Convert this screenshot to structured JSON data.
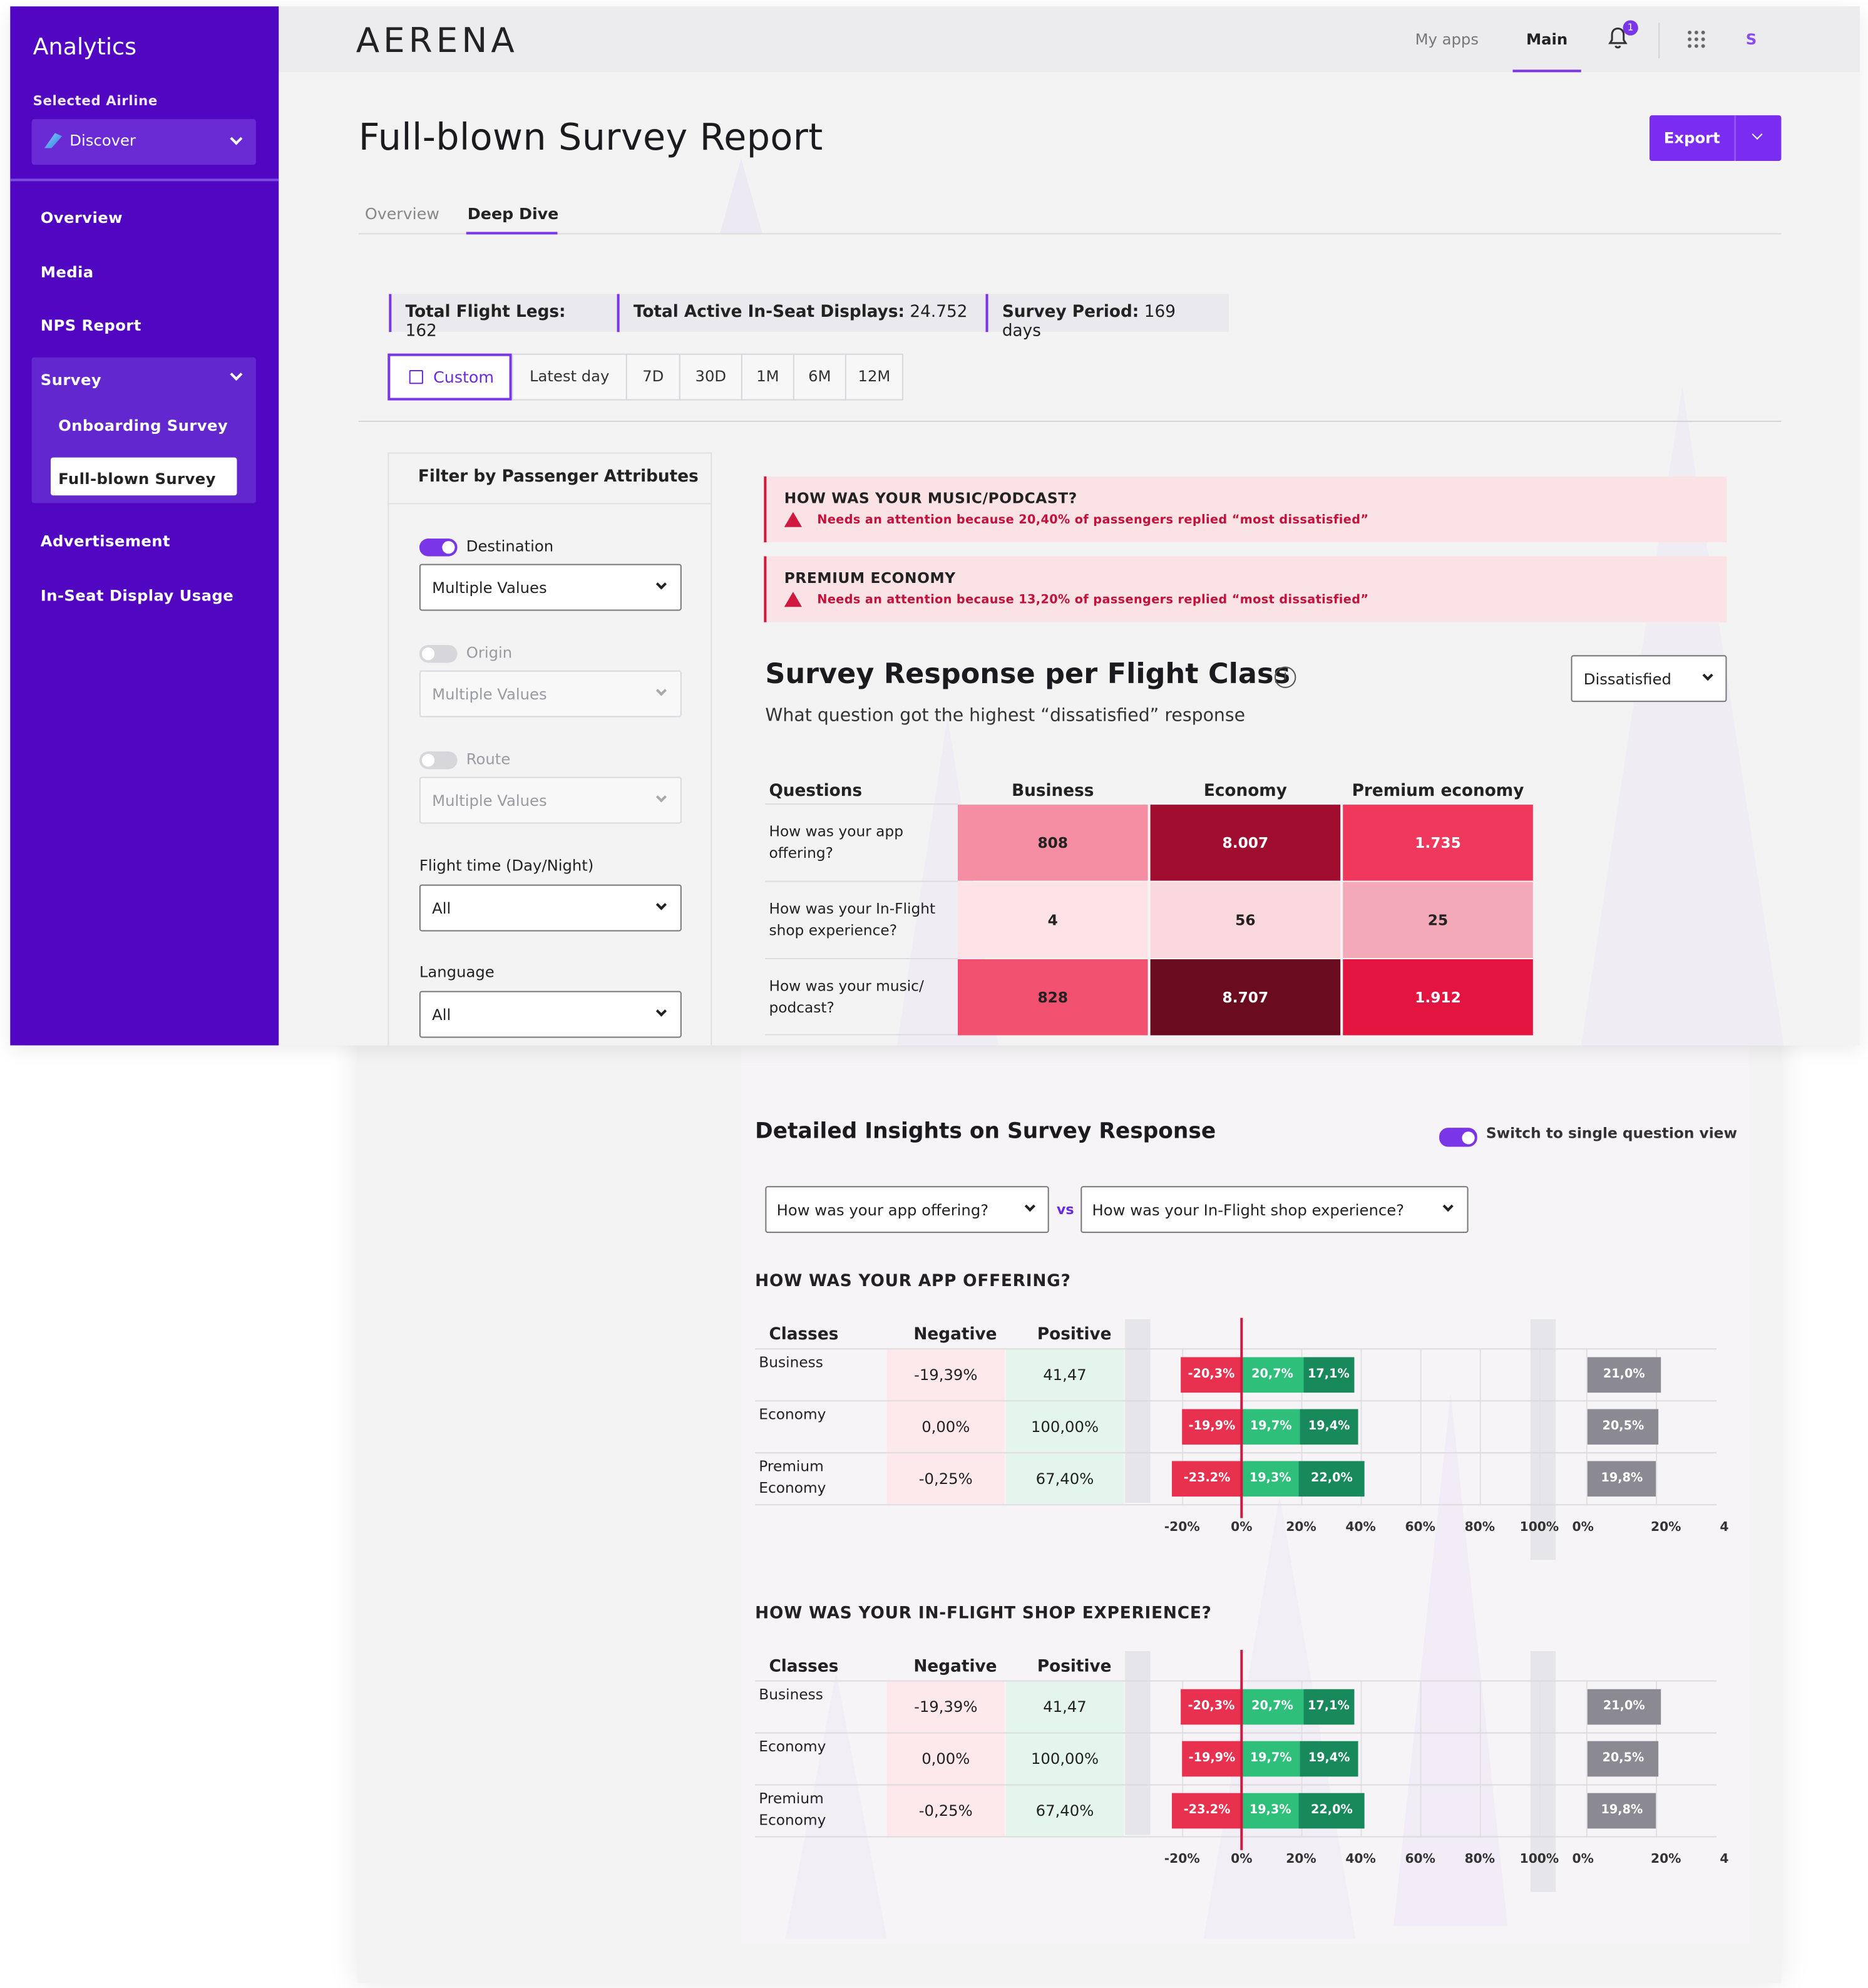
{
  "sidebar": {
    "title": "Analytics",
    "selected_airline_label": "Selected Airline",
    "airline": "Discover",
    "items": [
      "Overview",
      "Media",
      "NPS Report",
      "Survey",
      "Onboarding Survey",
      "Full-blown Survey",
      "Advertisement",
      "In-Seat Display Usage"
    ]
  },
  "topbar": {
    "logo": "AERENA",
    "my_apps": "My apps",
    "main": "Main",
    "notification_count": "1",
    "avatar": "S"
  },
  "header": {
    "title": "Full-blown Survey Report",
    "export": "Export",
    "tabs": [
      "Overview",
      "Deep Dive"
    ],
    "active_tab": "Deep Dive"
  },
  "stats": [
    {
      "label": "Total Flight Legs:",
      "value": "162"
    },
    {
      "label": "Total Active In-Seat Displays:",
      "value": "24.752"
    },
    {
      "label": "Survey Period:",
      "value": "169 days"
    }
  ],
  "date_range": {
    "custom": "Custom",
    "options": [
      "Latest day",
      "7D",
      "30D",
      "1M",
      "6M",
      "12M"
    ]
  },
  "filters": {
    "title": "Filter by Passenger Attributes",
    "destination": {
      "label": "Destination",
      "value": "Multiple Values",
      "enabled": true
    },
    "origin": {
      "label": "Origin",
      "value": "Multiple Values",
      "enabled": false
    },
    "route": {
      "label": "Route",
      "value": "Multiple Values",
      "enabled": false
    },
    "flight_time": {
      "label": "Flight time (Day/Night)",
      "value": "All"
    },
    "language": {
      "label": "Language",
      "value": "All"
    }
  },
  "alerts": [
    {
      "title": "HOW WAS YOUR MUSIC/PODCAST?",
      "message": "Needs an attention because 20,40% of passengers replied “most dissatisfied”"
    },
    {
      "title": "PREMIUM ECONOMY",
      "message": "Needs an attention because 13,20% of passengers replied “most dissatisfied”"
    }
  ],
  "heatmap": {
    "title": "Survey Response per Flight Class",
    "subtitle": "What question got the highest “dissatisfied” response",
    "filter": "Dissatisfied",
    "row_header": "Questions",
    "columns": [
      "Business",
      "Economy",
      "Premium economy"
    ],
    "rows": [
      {
        "question": "How was your app offering?",
        "values": [
          "808",
          "8.007",
          "1.735"
        ]
      },
      {
        "question": "How was your In-Flight shop experience?",
        "values": [
          "4",
          "56",
          "25"
        ]
      },
      {
        "question": "How was your music/ podcast?",
        "values": [
          "828",
          "8.707",
          "1.912"
        ]
      }
    ],
    "colors": [
      [
        "#f58ea3",
        "#a00d2e",
        "#f0375c"
      ],
      [
        "#fde2e7",
        "#fbd7de",
        "#f4a9b8"
      ],
      [
        "#f1506e",
        "#6a0b1f",
        "#e41441"
      ]
    ],
    "text_colors": [
      [
        "#222",
        "#fff",
        "#fff"
      ],
      [
        "#222",
        "#222",
        "#222"
      ],
      [
        "#222",
        "#fff",
        "#fff"
      ]
    ]
  },
  "insights": {
    "title": "Detailed Insights on Survey Response",
    "switch_label": "Switch to single question view",
    "question_a": "How was your app offering?",
    "vs": "vs",
    "question_b": "How was your In-Flight shop experience?",
    "blocks": [
      {
        "heading": "HOW WAS YOUR APP OFFERING?",
        "col_classes": "Classes",
        "col_negative": "Negative",
        "col_positive": "Positive",
        "rows": [
          {
            "class": "Business",
            "negative": "-19,39%",
            "positive": "41,47",
            "bars": {
              "neg": -20.3,
              "neg_label": "-20,3%",
              "mid": 20.7,
              "mid_label": "20,7%",
              "pos": 17.1,
              "pos_label": "17,1%"
            },
            "grey": 21.0,
            "grey_label": "21,0%"
          },
          {
            "class": "Economy",
            "negative": "0,00%",
            "positive": "100,00%",
            "bars": {
              "neg": -19.9,
              "neg_label": "-19,9%",
              "mid": 19.7,
              "mid_label": "19,7%",
              "pos": 19.4,
              "pos_label": "19,4%"
            },
            "grey": 20.5,
            "grey_label": "20,5%"
          },
          {
            "class": "Premium Economy",
            "negative": "-0,25%",
            "positive": "67,40%",
            "bars": {
              "neg": -23.2,
              "neg_label": "-23.2%",
              "mid": 19.3,
              "mid_label": "19,3%",
              "pos": 22.0,
              "pos_label": "22,0%"
            },
            "grey": 19.8,
            "grey_label": "19,8%"
          }
        ]
      },
      {
        "heading": "HOW WAS YOUR IN-FLIGHT SHOP EXPERIENCE?",
        "col_classes": "Classes",
        "col_negative": "Negative",
        "col_positive": "Positive",
        "rows": [
          {
            "class": "Business",
            "negative": "-19,39%",
            "positive": "41,47",
            "bars": {
              "neg": -20.3,
              "neg_label": "-20,3%",
              "mid": 20.7,
              "mid_label": "20,7%",
              "pos": 17.1,
              "pos_label": "17,1%"
            },
            "grey": 21.0,
            "grey_label": "21,0%"
          },
          {
            "class": "Economy",
            "negative": "0,00%",
            "positive": "100,00%",
            "bars": {
              "neg": -19.9,
              "neg_label": "-19,9%",
              "mid": 19.7,
              "mid_label": "19,7%",
              "pos": 19.4,
              "pos_label": "19,4%"
            },
            "grey": 20.5,
            "grey_label": "20,5%"
          },
          {
            "class": "Premium Economy",
            "negative": "-0,25%",
            "positive": "67,40%",
            "bars": {
              "neg": -23.2,
              "neg_label": "-23.2%",
              "mid": 19.3,
              "mid_label": "19,3%",
              "pos": 22.0,
              "pos_label": "22,0%"
            },
            "grey": 19.8,
            "grey_label": "19,8%"
          }
        ]
      }
    ],
    "axis_ticks": [
      "-20%",
      "0%",
      "20%",
      "40%",
      "60%",
      "80%",
      "100%"
    ],
    "axis2_ticks": [
      "0%",
      "20%",
      "4"
    ]
  },
  "colors": {
    "accent": "#7a2cf0",
    "sidebar": "#5107c2",
    "negative": "#e8304f",
    "mid_positive": "#2ec07a",
    "positive": "#18895a",
    "neutral": "#8b8a92"
  }
}
